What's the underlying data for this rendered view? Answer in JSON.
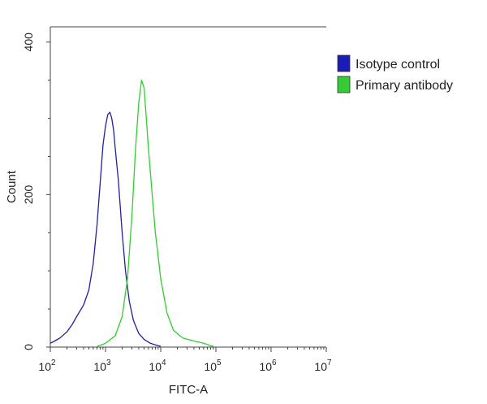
{
  "chart_data": {
    "type": "area",
    "xlabel": "FITC-A",
    "ylabel": "Count",
    "xscale": "log",
    "xlim": [
      100,
      10000000
    ],
    "ylim": [
      0,
      420
    ],
    "grid": false,
    "legend_position": "top-right",
    "x_ticks": [
      {
        "value": 100,
        "base": "10",
        "exp": "2"
      },
      {
        "value": 1000,
        "base": "10",
        "exp": "3"
      },
      {
        "value": 10000,
        "base": "10",
        "exp": "4"
      },
      {
        "value": 100000,
        "base": "10",
        "exp": "5"
      },
      {
        "value": 1000000,
        "base": "10",
        "exp": "6"
      },
      {
        "value": 10000000,
        "base": "10",
        "exp": "7"
      }
    ],
    "y_ticks": [
      {
        "value": 0,
        "label": "0"
      },
      {
        "value": 200,
        "label": "200"
      },
      {
        "value": 400,
        "label": "400"
      }
    ],
    "series": [
      {
        "name": "Isotype control",
        "color": "#1f1fa8",
        "legend_fill": "#1b1bb5",
        "points": [
          [
            100,
            5
          ],
          [
            120,
            8
          ],
          [
            150,
            12
          ],
          [
            200,
            20
          ],
          [
            250,
            30
          ],
          [
            300,
            40
          ],
          [
            400,
            55
          ],
          [
            500,
            75
          ],
          [
            600,
            110
          ],
          [
            700,
            160
          ],
          [
            800,
            215
          ],
          [
            900,
            265
          ],
          [
            1000,
            290
          ],
          [
            1100,
            305
          ],
          [
            1200,
            308
          ],
          [
            1300,
            300
          ],
          [
            1400,
            285
          ],
          [
            1500,
            260
          ],
          [
            1700,
            220
          ],
          [
            2000,
            150
          ],
          [
            2300,
            100
          ],
          [
            2700,
            60
          ],
          [
            3200,
            35
          ],
          [
            4000,
            18
          ],
          [
            5000,
            10
          ],
          [
            6500,
            5
          ],
          [
            8000,
            3
          ],
          [
            10000,
            1
          ]
        ]
      },
      {
        "name": "Primary antibody",
        "color": "#2fcf2f",
        "legend_fill": "#33cc33",
        "points": [
          [
            700,
            1
          ],
          [
            1000,
            5
          ],
          [
            1500,
            15
          ],
          [
            2000,
            40
          ],
          [
            2500,
            90
          ],
          [
            3000,
            170
          ],
          [
            3500,
            260
          ],
          [
            4000,
            320
          ],
          [
            4500,
            350
          ],
          [
            5000,
            340
          ],
          [
            5500,
            300
          ],
          [
            6000,
            260
          ],
          [
            7000,
            200
          ],
          [
            8000,
            150
          ],
          [
            10000,
            90
          ],
          [
            13000,
            45
          ],
          [
            17000,
            22
          ],
          [
            25000,
            12
          ],
          [
            40000,
            8
          ],
          [
            60000,
            5
          ],
          [
            80000,
            2
          ],
          [
            90000,
            1
          ]
        ]
      }
    ]
  }
}
